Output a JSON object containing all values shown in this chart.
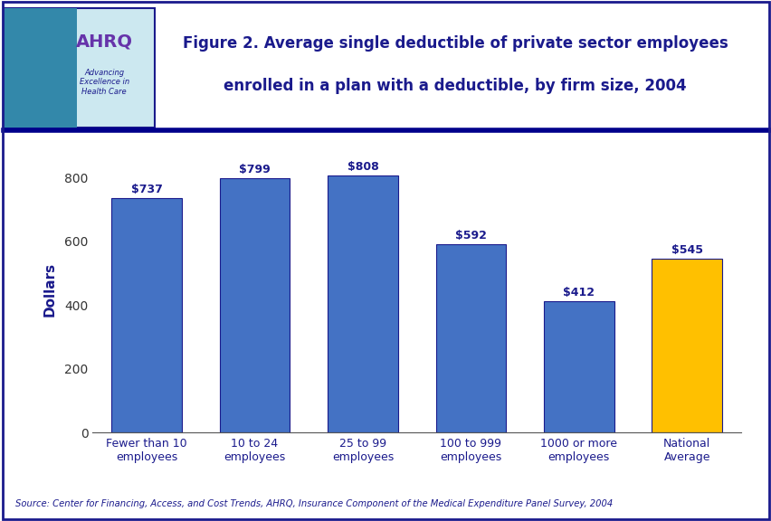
{
  "categories": [
    "Fewer than 10\nemployees",
    "10 to 24\nemployees",
    "25 to 99\nemployees",
    "100 to 999\nemployees",
    "1000 or more\nemployees",
    "National\nAverage"
  ],
  "values": [
    737,
    799,
    808,
    592,
    412,
    545
  ],
  "bar_colors": [
    "#4472C4",
    "#4472C4",
    "#4472C4",
    "#4472C4",
    "#4472C4",
    "#FFC000"
  ],
  "bar_edge_color": "#1a1a8c",
  "value_labels": [
    "$737",
    "$799",
    "$808",
    "$592",
    "$412",
    "$545"
  ],
  "ylabel": "Dollars",
  "ylim": [
    0,
    900
  ],
  "yticks": [
    0,
    200,
    400,
    600,
    800
  ],
  "title_line1": "Figure 2. Average single deductible of private sector employees",
  "title_line2": "enrolled in a plan with a deductible, by firm size, 2004",
  "title_color": "#1a1a8c",
  "source_text": "Source: Center for Financing, Access, and Cost Trends, AHRQ, Insurance Component of the Medical Expenditure Panel Survey, 2004",
  "background_color": "#ffffff",
  "plot_background": "#ffffff",
  "label_color": "#1a1a8c",
  "bar_width": 0.65,
  "header_bg": "#ffffff",
  "divider_color": "#00008B",
  "border_color": "#1a1a8c"
}
